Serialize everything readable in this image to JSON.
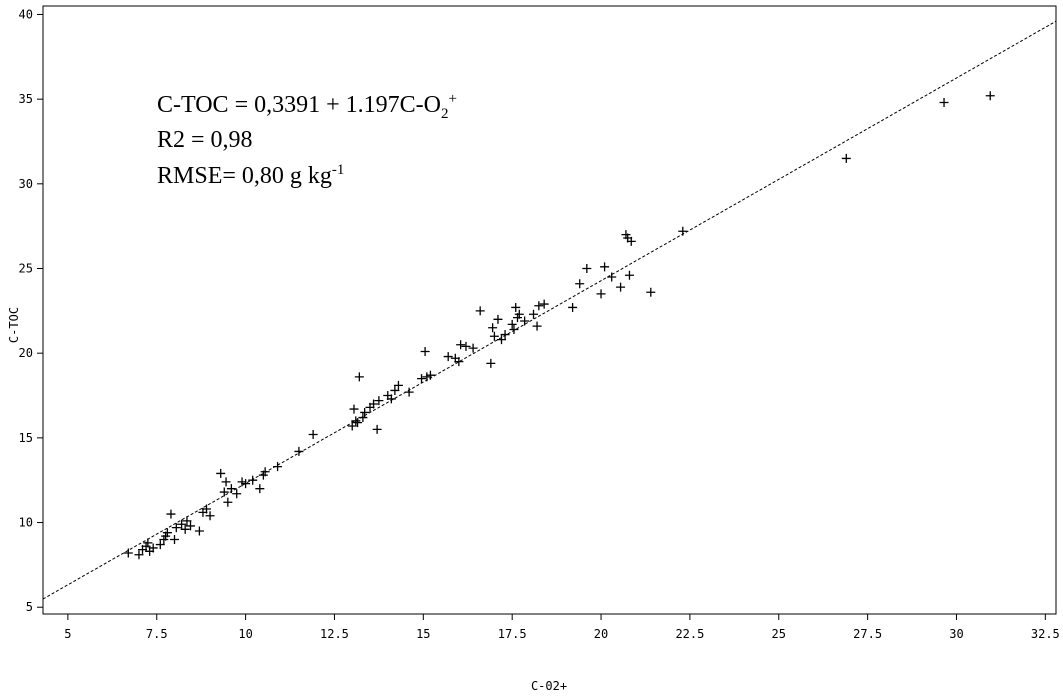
{
  "chart_data": {
    "type": "scatter",
    "title": "",
    "xlabel": "C-02+",
    "ylabel": "C-TOC",
    "xlim": [
      4.3,
      32.8
    ],
    "ylim": [
      4.6,
      40.5
    ],
    "xticks": [
      5,
      7.5,
      10,
      12.5,
      15,
      17.5,
      20,
      22.5,
      25,
      27.5,
      30,
      32.5
    ],
    "xtick_labels": [
      "5",
      "7.5",
      "10",
      "12.5",
      "15",
      "17.5",
      "20",
      "22.5",
      "25",
      "27.5",
      "30",
      "32.5"
    ],
    "yticks": [
      5,
      10,
      15,
      20,
      25,
      30,
      35,
      40
    ],
    "ytick_labels": [
      "5",
      "10",
      "15",
      "20",
      "25",
      "30",
      "35",
      "40"
    ],
    "grid": false,
    "marker": "+",
    "fit_line": {
      "intercept": 0.3391,
      "slope": 1.197,
      "style": "dashed"
    },
    "annotations": {
      "equation_main": "C-TOC = 0,3391 + 1.197C-O",
      "equation_sub": "2",
      "equation_sup": "+",
      "r2": "R2 = 0,98",
      "rmse_main": "RMSE= 0,80 g kg",
      "rmse_sup": "-1"
    },
    "points": [
      [
        6.7,
        8.2
      ],
      [
        7.0,
        8.1
      ],
      [
        7.1,
        8.4
      ],
      [
        7.2,
        8.6
      ],
      [
        7.25,
        8.8
      ],
      [
        7.3,
        8.3
      ],
      [
        7.4,
        8.5
      ],
      [
        7.6,
        8.7
      ],
      [
        7.7,
        9.0
      ],
      [
        7.75,
        9.2
      ],
      [
        7.8,
        9.4
      ],
      [
        7.9,
        10.5
      ],
      [
        8.0,
        9.0
      ],
      [
        8.05,
        9.7
      ],
      [
        8.2,
        9.9
      ],
      [
        8.3,
        9.6
      ],
      [
        8.35,
        10.1
      ],
      [
        8.45,
        9.8
      ],
      [
        8.7,
        9.5
      ],
      [
        8.8,
        10.6
      ],
      [
        8.9,
        10.8
      ],
      [
        9.0,
        10.4
      ],
      [
        9.3,
        12.9
      ],
      [
        9.4,
        11.8
      ],
      [
        9.45,
        12.4
      ],
      [
        9.5,
        11.2
      ],
      [
        9.6,
        12.0
      ],
      [
        9.75,
        11.7
      ],
      [
        9.9,
        12.4
      ],
      [
        10.0,
        12.3
      ],
      [
        10.2,
        12.5
      ],
      [
        10.4,
        12.0
      ],
      [
        10.5,
        12.8
      ],
      [
        10.55,
        13.0
      ],
      [
        10.9,
        13.3
      ],
      [
        11.5,
        14.2
      ],
      [
        11.9,
        15.2
      ],
      [
        13.0,
        15.7
      ],
      [
        13.05,
        16.7
      ],
      [
        13.1,
        16.0
      ],
      [
        13.15,
        15.9
      ],
      [
        13.2,
        18.6
      ],
      [
        13.3,
        16.2
      ],
      [
        13.35,
        16.5
      ],
      [
        13.5,
        16.8
      ],
      [
        13.6,
        17.0
      ],
      [
        13.7,
        15.5
      ],
      [
        13.75,
        17.2
      ],
      [
        14.0,
        17.5
      ],
      [
        14.1,
        17.3
      ],
      [
        14.2,
        17.8
      ],
      [
        14.3,
        18.1
      ],
      [
        14.6,
        17.7
      ],
      [
        14.95,
        18.5
      ],
      [
        15.05,
        20.1
      ],
      [
        15.1,
        18.6
      ],
      [
        15.2,
        18.7
      ],
      [
        15.7,
        19.8
      ],
      [
        15.9,
        19.7
      ],
      [
        16.0,
        19.5
      ],
      [
        16.05,
        20.5
      ],
      [
        16.2,
        20.4
      ],
      [
        16.4,
        20.3
      ],
      [
        16.6,
        22.5
      ],
      [
        16.9,
        19.4
      ],
      [
        16.95,
        21.5
      ],
      [
        17.0,
        21.0
      ],
      [
        17.1,
        22.0
      ],
      [
        17.2,
        20.8
      ],
      [
        17.3,
        21.1
      ],
      [
        17.5,
        21.7
      ],
      [
        17.55,
        21.4
      ],
      [
        17.6,
        22.7
      ],
      [
        17.65,
        22.1
      ],
      [
        17.7,
        22.3
      ],
      [
        17.85,
        21.9
      ],
      [
        18.1,
        22.3
      ],
      [
        18.2,
        21.6
      ],
      [
        18.25,
        22.8
      ],
      [
        18.4,
        22.9
      ],
      [
        19.2,
        22.7
      ],
      [
        19.4,
        24.1
      ],
      [
        19.6,
        25.0
      ],
      [
        20.0,
        23.5
      ],
      [
        20.1,
        25.1
      ],
      [
        20.3,
        24.5
      ],
      [
        20.55,
        23.9
      ],
      [
        20.7,
        27.0
      ],
      [
        20.75,
        26.8
      ],
      [
        20.8,
        24.6
      ],
      [
        20.85,
        26.6
      ],
      [
        21.4,
        23.6
      ],
      [
        22.3,
        27.2
      ],
      [
        26.9,
        31.5
      ],
      [
        29.65,
        34.8
      ],
      [
        30.95,
        35.2
      ]
    ]
  }
}
